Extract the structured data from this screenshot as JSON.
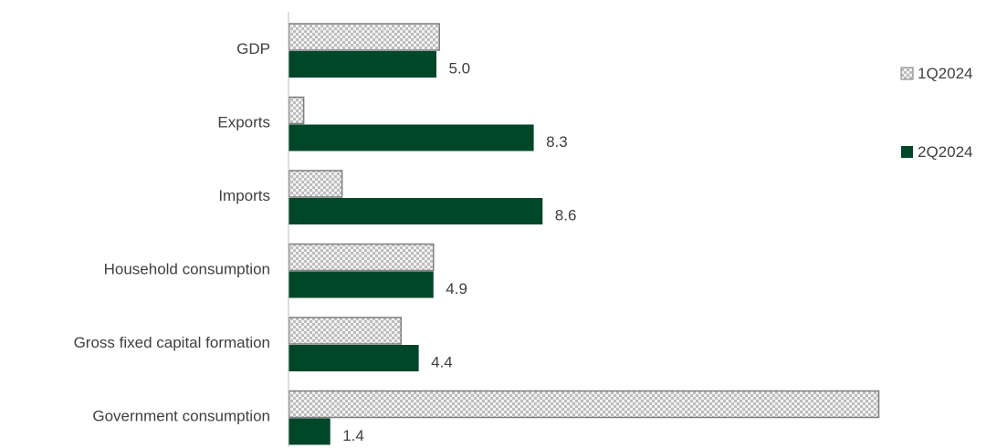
{
  "chart_data": {
    "type": "bar",
    "orientation": "horizontal",
    "categories": [
      "GDP",
      "Exports",
      "Imports",
      "Household consumption",
      "Gross fixed capital formation",
      "Government consumption"
    ],
    "series": [
      {
        "name": "1Q2024",
        "values": [
          5.1,
          0.5,
          1.8,
          4.9,
          3.8,
          20.0
        ],
        "color": "#c8c8c8",
        "pattern": "checkered"
      },
      {
        "name": "2Q2024",
        "values": [
          5.0,
          8.3,
          8.6,
          4.9,
          4.4,
          1.4
        ],
        "color": "#00472a"
      }
    ],
    "data_labels": {
      "series": "2Q2024",
      "labels": [
        "5.0",
        "8.3",
        "8.6",
        "4.9",
        "4.4",
        "1.4"
      ]
    },
    "xlim": [
      0,
      20
    ],
    "grid": false,
    "legend_position": "right"
  },
  "legend": {
    "items": [
      {
        "label": "1Q2024",
        "icon": "checkered-swatch-icon"
      },
      {
        "label": "2Q2024",
        "icon": "solid-swatch-icon"
      }
    ]
  }
}
